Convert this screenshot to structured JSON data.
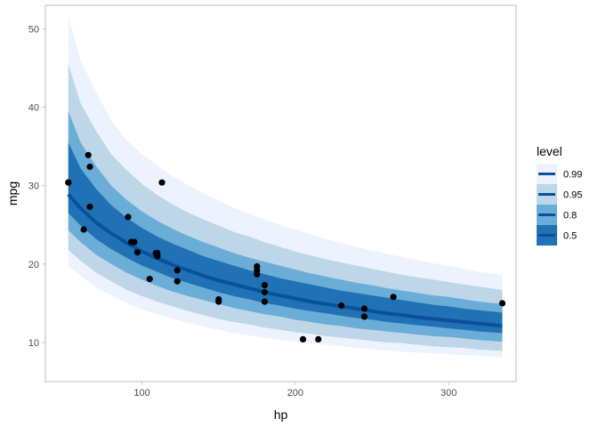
{
  "chart_data": {
    "type": "line",
    "xlabel": "hp",
    "ylabel": "mpg",
    "xlim": [
      37,
      344
    ],
    "ylim": [
      5,
      53
    ],
    "x_ticks": [
      100,
      200,
      300
    ],
    "y_ticks": [
      10,
      20,
      30,
      40,
      50
    ],
    "grid": false,
    "legend_position": "right",
    "legend": {
      "title": "level",
      "entries": [
        {
          "label": "0.99",
          "color": "#edf3fe"
        },
        {
          "label": "0.95",
          "color": "#bdd6e8"
        },
        {
          "label": "0.8",
          "color": "#6aadd7"
        },
        {
          "label": "0.5",
          "color": "#2171b5"
        }
      ],
      "line_color": "#08519c"
    },
    "curve": {
      "x": [
        52,
        60,
        70,
        80,
        90,
        100,
        110,
        120,
        130,
        140,
        150,
        160,
        170,
        180,
        190,
        200,
        210,
        220,
        230,
        240,
        250,
        260,
        270,
        280,
        290,
        300,
        310,
        320,
        335
      ],
      "y": [
        28.9,
        27.1,
        25.3,
        23.9,
        22.7,
        21.6,
        20.7,
        19.9,
        19.2,
        18.5,
        17.9,
        17.4,
        16.9,
        16.4,
        16.0,
        15.6,
        15.2,
        14.9,
        14.6,
        14.3,
        14.0,
        13.7,
        13.5,
        13.2,
        13.0,
        12.8,
        12.6,
        12.4,
        12.1
      ]
    },
    "bands": [
      {
        "level": "0.99",
        "lower": [
          19.8,
          18.5,
          17.0,
          16.0,
          15.0,
          14.2,
          13.6,
          13.0,
          12.5,
          12.0,
          11.6,
          11.2,
          10.9,
          10.6,
          10.3,
          10.1,
          9.9,
          9.7,
          9.5,
          9.3,
          9.1,
          9.0,
          8.8,
          8.7,
          8.6,
          8.5,
          8.4,
          8.3,
          8.1
        ],
        "upper": [
          51.5,
          46.0,
          42.0,
          38.3,
          35.8,
          34.0,
          32.6,
          31.2,
          30.1,
          29.0,
          28.1,
          27.2,
          26.4,
          25.7,
          25.0,
          24.4,
          23.8,
          23.2,
          22.7,
          22.2,
          21.7,
          21.3,
          20.9,
          20.5,
          20.1,
          19.8,
          19.4,
          19.0,
          18.6
        ]
      },
      {
        "level": "0.95",
        "lower": [
          21.8,
          20.4,
          18.9,
          17.8,
          16.7,
          15.9,
          15.2,
          14.6,
          14.0,
          13.5,
          13.0,
          12.6,
          12.3,
          11.9,
          11.6,
          11.3,
          11.1,
          10.8,
          10.6,
          10.4,
          10.2,
          10.0,
          9.9,
          9.7,
          9.5,
          9.4,
          9.3,
          9.1,
          8.9
        ],
        "upper": [
          45.5,
          40.5,
          37.0,
          34.0,
          32.0,
          30.2,
          28.8,
          27.6,
          26.6,
          25.7,
          24.9,
          24.1,
          23.5,
          22.8,
          22.2,
          21.6,
          21.1,
          20.6,
          20.2,
          19.8,
          19.4,
          19.0,
          18.6,
          18.3,
          18.0,
          17.7,
          17.4,
          17.1,
          16.7
        ]
      },
      {
        "level": "0.8",
        "lower": [
          24.3,
          22.8,
          21.2,
          20.0,
          18.9,
          18.0,
          17.2,
          16.5,
          15.9,
          15.4,
          14.9,
          14.4,
          14.0,
          13.6,
          13.3,
          12.9,
          12.6,
          12.3,
          12.1,
          11.8,
          11.6,
          11.4,
          11.2,
          11.0,
          10.8,
          10.7,
          10.5,
          10.3,
          10.1
        ],
        "upper": [
          39.5,
          35.5,
          32.5,
          30.0,
          28.2,
          26.7,
          25.5,
          24.5,
          23.6,
          22.8,
          22.1,
          21.4,
          20.8,
          20.3,
          19.8,
          19.3,
          18.8,
          18.4,
          18.0,
          17.6,
          17.3,
          16.9,
          16.6,
          16.3,
          16.0,
          15.8,
          15.5,
          15.2,
          14.9
        ]
      },
      {
        "level": "0.5",
        "lower": [
          26.5,
          24.9,
          23.2,
          21.9,
          20.8,
          19.8,
          19.0,
          18.2,
          17.6,
          17.0,
          16.4,
          15.9,
          15.5,
          15.0,
          14.7,
          14.3,
          14.0,
          13.7,
          13.4,
          13.1,
          12.9,
          12.6,
          12.4,
          12.2,
          12.0,
          11.8,
          11.6,
          11.4,
          11.2
        ],
        "upper": [
          35.5,
          32.2,
          29.6,
          27.5,
          25.9,
          24.6,
          23.5,
          22.6,
          21.8,
          21.0,
          20.4,
          19.8,
          19.2,
          18.7,
          18.2,
          17.8,
          17.4,
          17.0,
          16.6,
          16.3,
          16.0,
          15.7,
          15.4,
          15.1,
          14.8,
          14.6,
          14.3,
          14.1,
          13.8
        ]
      }
    ],
    "points": [
      {
        "x": 52,
        "y": 30.4
      },
      {
        "x": 52,
        "y": 30.4
      },
      {
        "x": 62,
        "y": 24.4
      },
      {
        "x": 65,
        "y": 33.9
      },
      {
        "x": 66,
        "y": 32.4
      },
      {
        "x": 66,
        "y": 27.3
      },
      {
        "x": 91,
        "y": 26.0
      },
      {
        "x": 93,
        "y": 22.8
      },
      {
        "x": 95,
        "y": 22.8
      },
      {
        "x": 97,
        "y": 21.5
      },
      {
        "x": 105,
        "y": 18.1
      },
      {
        "x": 109,
        "y": 21.4
      },
      {
        "x": 110,
        "y": 21.0
      },
      {
        "x": 110,
        "y": 21.0
      },
      {
        "x": 110,
        "y": 21.4
      },
      {
        "x": 113,
        "y": 30.4
      },
      {
        "x": 123,
        "y": 19.2
      },
      {
        "x": 123,
        "y": 17.8
      },
      {
        "x": 150,
        "y": 15.5
      },
      {
        "x": 150,
        "y": 15.2
      },
      {
        "x": 175,
        "y": 19.7
      },
      {
        "x": 175,
        "y": 19.2
      },
      {
        "x": 175,
        "y": 18.7
      },
      {
        "x": 180,
        "y": 17.3
      },
      {
        "x": 180,
        "y": 16.4
      },
      {
        "x": 180,
        "y": 15.2
      },
      {
        "x": 205,
        "y": 10.4
      },
      {
        "x": 215,
        "y": 10.4
      },
      {
        "x": 230,
        "y": 14.7
      },
      {
        "x": 245,
        "y": 14.3
      },
      {
        "x": 245,
        "y": 13.3
      },
      {
        "x": 264,
        "y": 15.8
      },
      {
        "x": 335,
        "y": 15.0
      }
    ]
  }
}
